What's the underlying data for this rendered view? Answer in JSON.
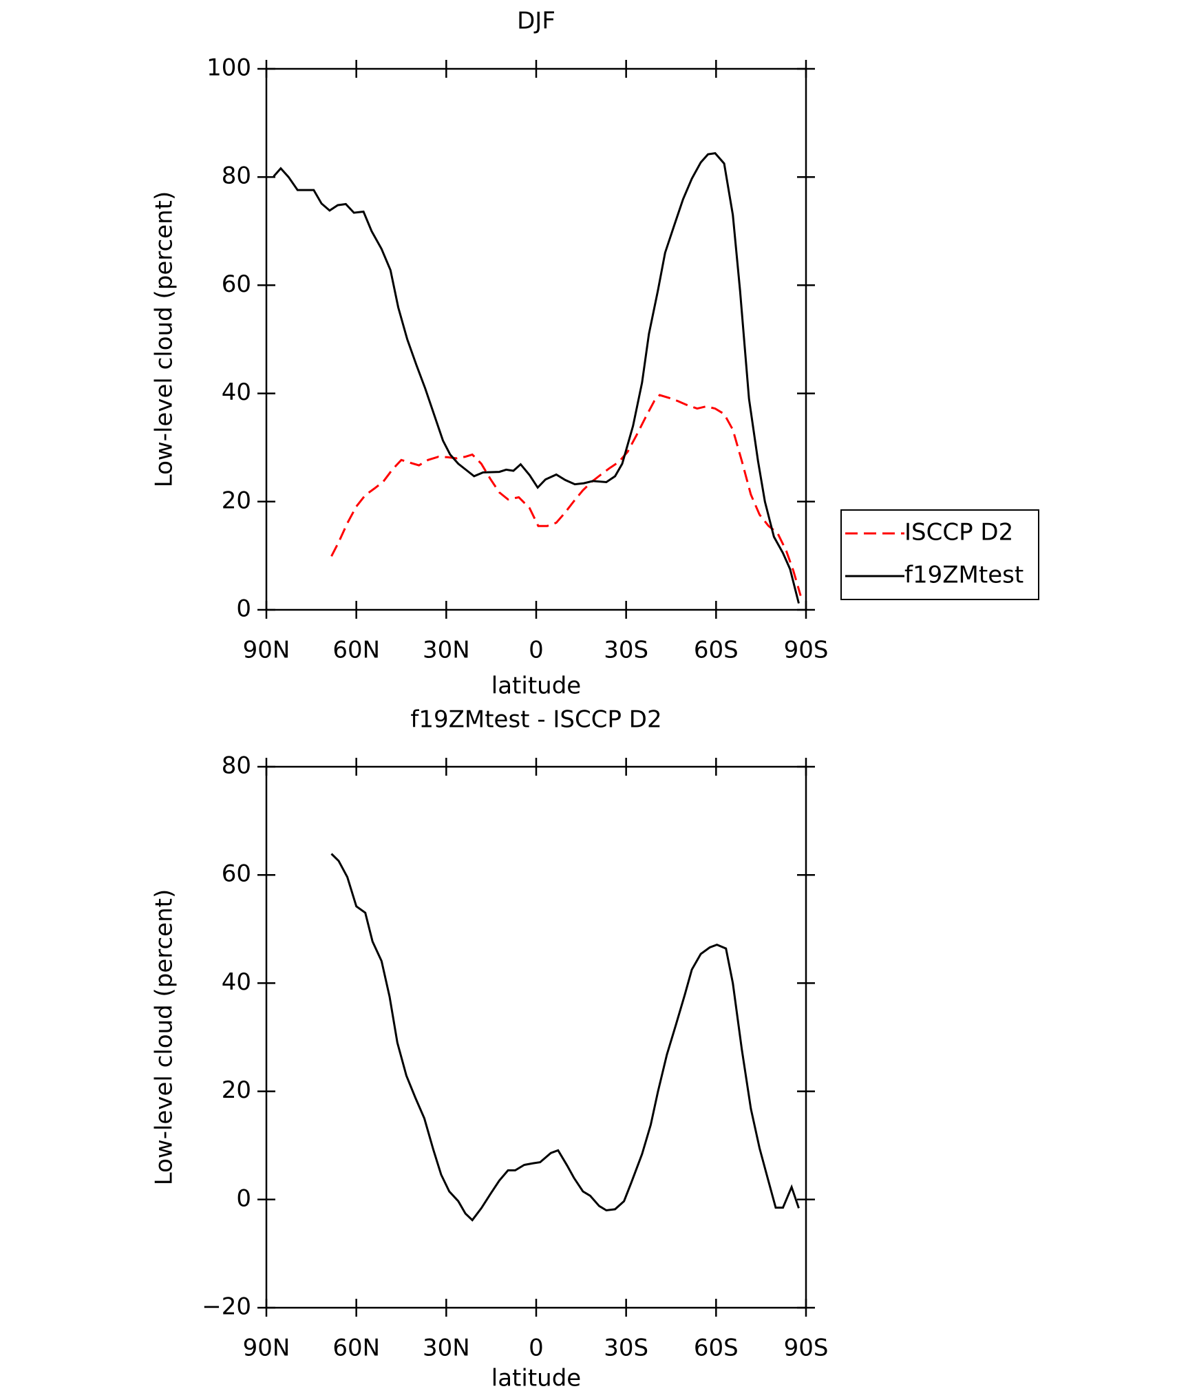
{
  "chart_data": [
    {
      "type": "line",
      "title": "DJF",
      "xlabel": "latitude",
      "ylabel": "Low-level cloud (percent)",
      "xlim": [
        90,
        -90
      ],
      "ylim": [
        0,
        100
      ],
      "xticks": [
        {
          "value": 90,
          "label": "90N"
        },
        {
          "value": 60,
          "label": "60N"
        },
        {
          "value": 30,
          "label": "30N"
        },
        0,
        {
          "value": -30,
          "label": "30S"
        },
        {
          "value": -60,
          "label": "60S"
        },
        {
          "value": -90,
          "label": "90S"
        }
      ],
      "yticks": [
        0,
        20,
        40,
        60,
        80,
        100
      ],
      "legend": "outside-right",
      "series": [
        {
          "name": "ISCCP D2",
          "color": "#ff0000",
          "style": "dashed",
          "x": [
            68.3,
            65.9,
            63,
            60,
            57,
            54,
            51,
            48,
            45,
            42.1,
            39.1,
            36.1,
            32.6,
            29.6,
            26.6,
            23.6,
            21.3,
            18.3,
            15.3,
            12.3,
            9.4,
            5.8,
            2.2,
            -0.7,
            -3.7,
            -6.7,
            -9.7,
            -12.6,
            -15.6,
            -18.6,
            -21.6,
            -24.5,
            -27.5,
            -30.5,
            -33.5,
            -36.5,
            -39.4,
            -41.2,
            -44.2,
            -47.2,
            -50.1,
            -53.7,
            -56.7,
            -59.7,
            -62.7,
            -65.6,
            -68.6,
            -71.6,
            -74.5,
            -77.5,
            -80.5,
            -83.4,
            -85.8,
            -88.2
          ],
          "values": [
            9.9,
            12.5,
            16,
            19.1,
            21.2,
            22.4,
            23.7,
            25.9,
            27.7,
            27.2,
            26.7,
            27.7,
            28.3,
            28.2,
            28,
            28.3,
            28.7,
            27,
            24.2,
            21.7,
            20.4,
            20.8,
            18.8,
            15.5,
            15.5,
            16.1,
            18,
            20.1,
            22.1,
            23.7,
            25,
            26.2,
            27.3,
            29.2,
            32.3,
            35.6,
            38.6,
            39.7,
            39.2,
            38.6,
            37.9,
            37.2,
            37.6,
            37.2,
            36.2,
            33.3,
            27.5,
            21.3,
            17.6,
            15.5,
            14.2,
            10.9,
            7.2,
            2.6
          ]
        },
        {
          "name": "f19ZMtest",
          "color": "#000000",
          "style": "solid",
          "x": [
            87.6,
            85.2,
            82.6,
            79.6,
            74.2,
            71.6,
            68.9,
            66.2,
            63.5,
            60.8,
            57.6,
            54.9,
            51.6,
            48.6,
            46,
            43,
            40,
            37,
            34,
            31.1,
            28.7,
            26,
            23,
            20.7,
            17.7,
            12.3,
            10,
            7.6,
            5.2,
            2.2,
            -0.5,
            -3.1,
            -6.7,
            -9.7,
            -12.9,
            -15.9,
            -18.9,
            -23.4,
            -26.3,
            -28.7,
            -32.3,
            -35.3,
            -37.6,
            -40.6,
            -43,
            -46,
            -49,
            -51.9,
            -54.9,
            -57.3,
            -59.7,
            -62.7,
            -65.6,
            -68,
            -71,
            -74,
            -76.3,
            -79.3,
            -82.3,
            -84.7,
            -87.6
          ],
          "values": [
            80.1,
            81.6,
            80,
            77.6,
            77.6,
            75.1,
            73.8,
            74.8,
            75,
            73.4,
            73.6,
            70,
            66.7,
            62.8,
            55.9,
            50,
            45.3,
            40.9,
            36,
            31.3,
            28.7,
            27,
            25.7,
            24.7,
            25.4,
            25.5,
            25.9,
            25.7,
            26.9,
            24.9,
            22.6,
            24.1,
            25,
            24,
            23.2,
            23.4,
            23.8,
            23.6,
            24.7,
            27,
            34,
            42,
            51,
            59,
            66,
            71,
            75.9,
            79.7,
            82.7,
            84.2,
            84.4,
            82.5,
            73,
            59,
            39,
            27.5,
            20,
            13.5,
            10.5,
            7.5,
            1.2
          ]
        }
      ]
    },
    {
      "type": "line",
      "title": "f19ZMtest - ISCCP D2",
      "xlabel": "latitude",
      "ylabel": "Low-level cloud (percent)",
      "xlim": [
        90,
        -90
      ],
      "ylim": [
        -20,
        80
      ],
      "xticks": [
        {
          "value": 90,
          "label": "90N"
        },
        {
          "value": 60,
          "label": "60N"
        },
        {
          "value": 30,
          "label": "30N"
        },
        0,
        {
          "value": -30,
          "label": "30S"
        },
        {
          "value": -60,
          "label": "60S"
        },
        {
          "value": -90,
          "label": "90S"
        }
      ],
      "yticks": [
        {
          "value": -20,
          "label": "−20"
        },
        0,
        20,
        40,
        60,
        80
      ],
      "series": [
        {
          "color": "#000000",
          "style": "solid",
          "x": [
            68.3,
            65.9,
            63,
            60,
            57,
            54.6,
            51.6,
            48.9,
            46.3,
            43.3,
            40.3,
            37.3,
            34.3,
            31.7,
            29,
            26,
            23.6,
            21.3,
            18.3,
            15.3,
            12.3,
            9.4,
            7,
            4,
            1,
            -1.3,
            -4.9,
            -7.3,
            -10.3,
            -12.6,
            -15.6,
            -18,
            -21,
            -23.4,
            -26.3,
            -29.3,
            -31.7,
            -35.3,
            -38.2,
            -40.6,
            -43.6,
            -46.6,
            -49.6,
            -51.9,
            -54.9,
            -57.9,
            -60.3,
            -63.3,
            -65.6,
            -68.6,
            -71.6,
            -74.5,
            -76.9,
            -79.9,
            -82.3,
            -85.2,
            -87.6
          ],
          "values": [
            63.9,
            62.6,
            59.6,
            54.2,
            53,
            47.7,
            44.1,
            37.5,
            29,
            22.9,
            18.8,
            15,
            9.2,
            4.6,
            1.5,
            -0.3,
            -2.6,
            -3.8,
            -1.6,
            1,
            3.5,
            5.4,
            5.4,
            6.4,
            6.7,
            6.9,
            8.6,
            9.1,
            6.3,
            4,
            1.5,
            0.7,
            -1.2,
            -2,
            -1.8,
            -0.3,
            3.1,
            8.4,
            13.8,
            19.9,
            26.8,
            32.3,
            37.9,
            42.5,
            45.4,
            46.6,
            47.1,
            46.4,
            40,
            27.7,
            16.8,
            9.5,
            4.6,
            -1.5,
            -1.5,
            2.3,
            -1.6
          ]
        }
      ]
    }
  ]
}
